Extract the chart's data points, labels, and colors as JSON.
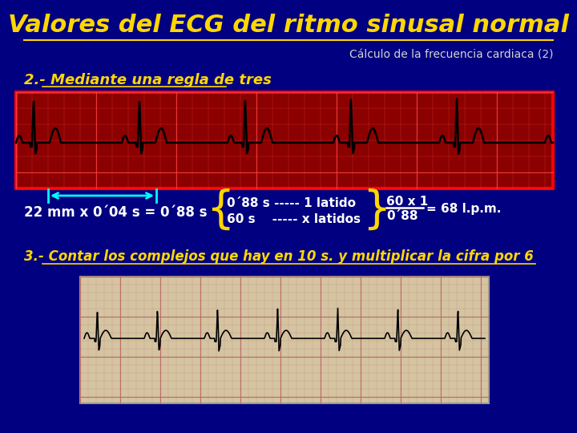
{
  "bg_color": "#000080",
  "title": "Valores del ECG del ritmo sinusal normal",
  "subtitle": "Cálculo de la frecuencia cardiaca (2)",
  "title_color": "#FFD700",
  "subtitle_color": "#D3D3D3",
  "point2_label": "2.- Mediante una regla de tres",
  "point2_color": "#FFD700",
  "formula_color": "#FFFFFF",
  "formula_text1": "22 mm x 0´04 s = 0´88 s",
  "brace_color": "#FFD700",
  "line1": "0´88 s ----- 1 latido",
  "line2": "60 s    ----- x latidos",
  "result_num": "60 x 1",
  "result_den": "0´88",
  "result_eq": "= 68 l.p.m.",
  "point3_label": "3.- Contar los complejos que hay en 10 s. y multiplicar la cifra por 6",
  "point3_color": "#FFD700",
  "arrow_color": "#00FFFF",
  "ecg_box_color": "#FF0000",
  "ecg_bg_color": "#8B0000",
  "ecg2_bg_color": "#d4c4a0"
}
